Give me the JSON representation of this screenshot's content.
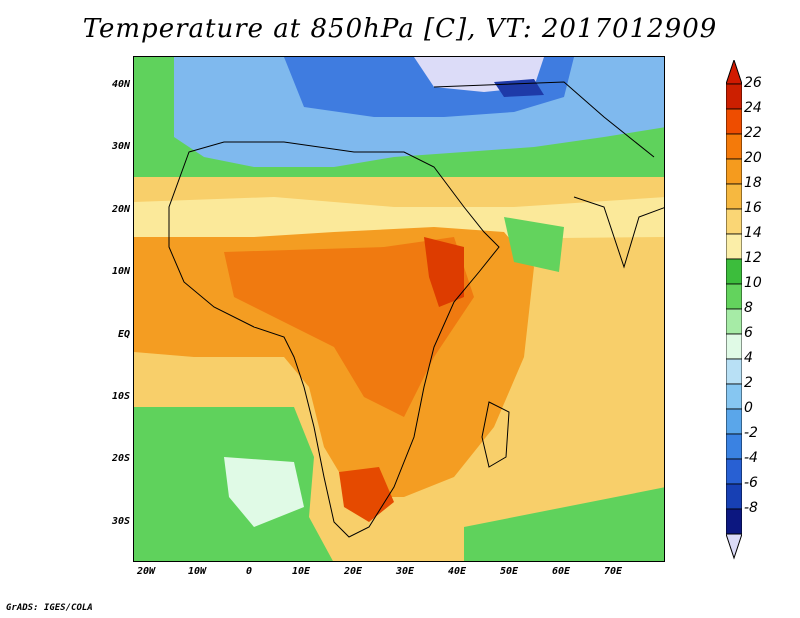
{
  "title": "Temperature at 850hPa [C], VT: 2017012909",
  "credit": "GrADS: IGES/COLA",
  "y_ticks": [
    "40N",
    "30N",
    "20N",
    "10N",
    "EQ",
    "10S",
    "20S",
    "30S"
  ],
  "x_ticks": [
    "20W",
    "10W",
    "0",
    "10E",
    "20E",
    "30E",
    "40E",
    "50E",
    "60E",
    "70E"
  ],
  "colorbar": {
    "labels": [
      "26",
      "24",
      "22",
      "20",
      "18",
      "16",
      "14",
      "12",
      "10",
      "8",
      "6",
      "4",
      "2",
      "0",
      "-2",
      "-4",
      "-6",
      "-8"
    ],
    "colors": [
      "#cc1f00",
      "#ee4d00",
      "#f47a0a",
      "#f59b1e",
      "#f6b840",
      "#fad675",
      "#fbeea8",
      "#3cbd3c",
      "#63d35d",
      "#a6eba6",
      "#e0fae6",
      "#b8e0f5",
      "#86c6f1",
      "#5aa6ea",
      "#3a82e2",
      "#2860d3",
      "#1740b4",
      "#0c1780"
    ],
    "top_color": "#d11a00",
    "bottom_color": "#dcdcf8"
  }
}
